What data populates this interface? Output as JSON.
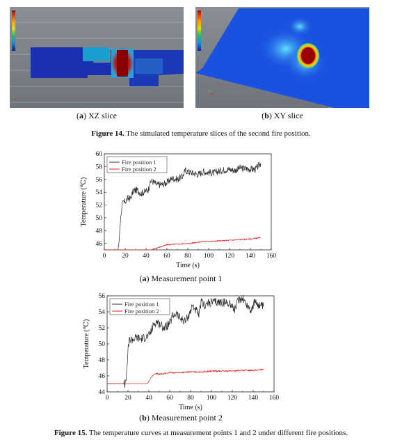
{
  "figure14": {
    "panel_a_label_prefix": "a",
    "panel_a_label_text": "XZ slice",
    "panel_b_label_prefix": "b",
    "panel_b_label_text": "XY slice",
    "caption_bold": "Figure 14.",
    "caption_text": " The simulated temperature slices of the second fire position."
  },
  "figure15": {
    "sub_a_prefix": "a",
    "sub_a_text": "Measurement point 1",
    "sub_b_prefix": "b",
    "sub_b_text": "Measurement point 2",
    "caption_bold": "Figure 15.",
    "caption_text": " The temperature curves at measurement points 1 and 2 under different fire positions."
  },
  "chart_data": [
    {
      "type": "line",
      "xlabel": "Time (s)",
      "ylabel": "Temperature (℃)",
      "xlim": [
        0,
        160
      ],
      "ylim": [
        45,
        60
      ],
      "xticks": [
        0,
        20,
        40,
        60,
        80,
        100,
        120,
        140,
        160
      ],
      "yticks": [
        46,
        48,
        50,
        52,
        54,
        56,
        58,
        60
      ],
      "legend_position": "top-left",
      "series": [
        {
          "name": "Fire position 1",
          "color": "#333333",
          "x": [
            0,
            13,
            14,
            15,
            16,
            17,
            18,
            20,
            22,
            25,
            28,
            32,
            35,
            40,
            42,
            45,
            48,
            50,
            55,
            60,
            65,
            70,
            75,
            78,
            80,
            85,
            90,
            95,
            100,
            105,
            110,
            115,
            120,
            125,
            130,
            135,
            140,
            145,
            150
          ],
          "y": [
            45,
            45,
            46,
            48.5,
            50.5,
            52,
            52.3,
            52.5,
            53,
            53,
            54.3,
            54.3,
            53.8,
            54.2,
            54.4,
            55.8,
            55.5,
            55.2,
            55.2,
            55.5,
            56.2,
            56,
            56.5,
            57.5,
            57.2,
            57,
            56.8,
            57.2,
            57.1,
            57,
            57.3,
            57.5,
            57.6,
            57.4,
            57.8,
            57.7,
            57.6,
            57.6,
            58.5
          ]
        },
        {
          "name": "Fire position 2",
          "color": "#e02020",
          "x": [
            0,
            45,
            47,
            50,
            55,
            58,
            60,
            70,
            80,
            90,
            95,
            100,
            110,
            120,
            130,
            140,
            150
          ],
          "y": [
            45,
            45,
            45.1,
            45.3,
            45.5,
            45.7,
            45.8,
            45.9,
            46.0,
            46.2,
            46.3,
            46.3,
            46.4,
            46.5,
            46.6,
            46.7,
            46.9
          ]
        }
      ]
    },
    {
      "type": "line",
      "xlabel": "Time (s)",
      "ylabel": "Temperature (℃)",
      "xlim": [
        0,
        160
      ],
      "ylim": [
        44,
        56
      ],
      "xticks": [
        0,
        20,
        40,
        60,
        80,
        100,
        120,
        140,
        160
      ],
      "yticks": [
        44,
        46,
        48,
        50,
        52,
        54,
        56
      ],
      "legend_position": "top-left",
      "series": [
        {
          "name": "Fire position 1",
          "color": "#333333",
          "x": [
            0,
            18,
            19,
            20,
            21,
            22,
            24,
            28,
            32,
            36,
            40,
            42,
            45,
            48,
            50,
            55,
            60,
            63,
            66,
            70,
            75,
            78,
            82,
            86,
            88,
            90,
            94,
            96,
            100,
            110,
            118,
            122,
            126,
            130,
            134,
            138,
            142,
            146,
            150
          ],
          "y": [
            45,
            45,
            47,
            49,
            50.3,
            50.6,
            50.5,
            50.8,
            50.6,
            50.8,
            51,
            51.5,
            52.5,
            52.8,
            52.5,
            52,
            52.5,
            53.5,
            53.8,
            53.2,
            52.8,
            53.5,
            54.8,
            54,
            53.5,
            55.2,
            54.8,
            55,
            55.2,
            55.2,
            55.1,
            54.2,
            55.5,
            55.8,
            54.8,
            54.2,
            55.3,
            54.8,
            54.6
          ]
        },
        {
          "name": "Fire position 2",
          "color": "#e02020",
          "x": [
            0,
            38,
            40,
            42,
            45,
            48,
            50,
            55,
            60,
            70,
            80,
            90,
            100,
            110,
            120,
            130,
            140,
            150
          ],
          "y": [
            45,
            45,
            45.3,
            45.8,
            46.2,
            46.3,
            46.2,
            46.3,
            46.4,
            46.4,
            46.5,
            46.5,
            46.6,
            46.6,
            46.6,
            46.7,
            46.7,
            46.8
          ]
        }
      ]
    }
  ]
}
